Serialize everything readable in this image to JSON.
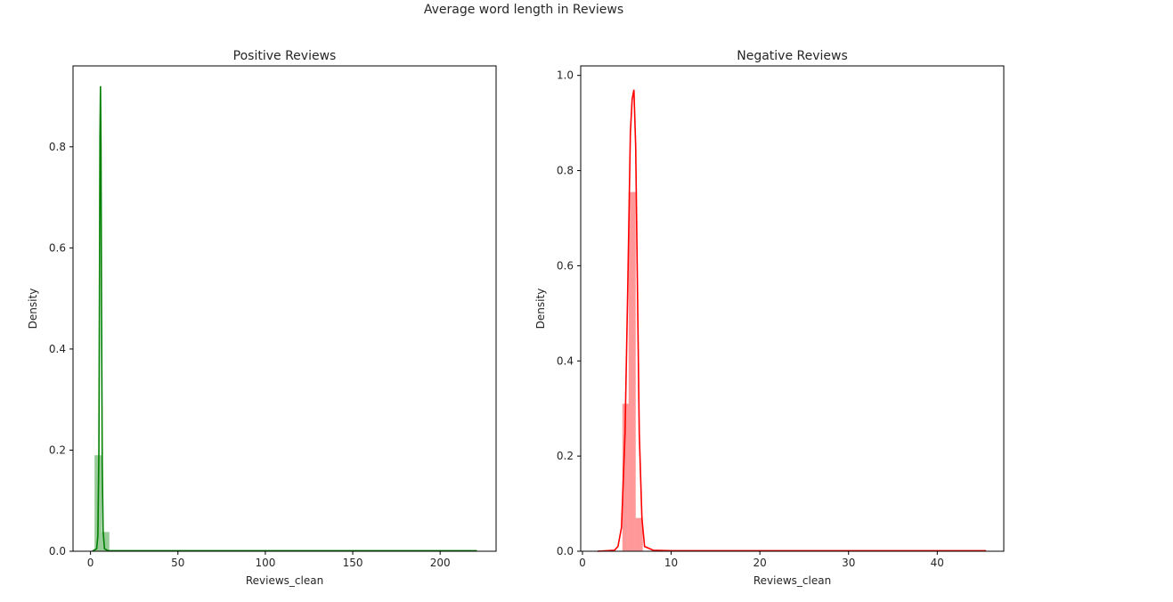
{
  "suptitle": "Average word length in Reviews",
  "chart_data": [
    {
      "type": "histogram+kde",
      "title": "Positive Reviews",
      "xlabel": "Reviews_clean",
      "ylabel": "Density",
      "xlim": [
        -10,
        232
      ],
      "ylim": [
        0,
        0.96
      ],
      "xticks": [
        0,
        50,
        100,
        150,
        200
      ],
      "yticks": [
        0.0,
        0.2,
        0.4,
        0.6,
        0.8
      ],
      "tick_decimals": 1,
      "color": "#008000",
      "bar_alpha": 0.4,
      "bins": [
        {
          "x0": 2.3,
          "x1": 6.5,
          "density": 0.19
        },
        {
          "x0": 6.5,
          "x1": 10.8,
          "density": 0.038
        },
        {
          "x0": 10.8,
          "x1": 221,
          "density": 0.0
        }
      ],
      "kde": {
        "points": [
          [
            1,
            0
          ],
          [
            3.5,
            0.005
          ],
          [
            4.2,
            0.03
          ],
          [
            4.8,
            0.2
          ],
          [
            5.1,
            0.5
          ],
          [
            5.4,
            0.82
          ],
          [
            5.7,
            0.92
          ],
          [
            6.0,
            0.8
          ],
          [
            6.3,
            0.48
          ],
          [
            6.7,
            0.18
          ],
          [
            7.2,
            0.04
          ],
          [
            8,
            0.005
          ],
          [
            10,
            0.001
          ],
          [
            50,
            0.001
          ],
          [
            221,
            0.001
          ]
        ]
      }
    },
    {
      "type": "histogram+kde",
      "title": "Negative Reviews",
      "xlabel": "Reviews_clean",
      "ylabel": "Density",
      "xlim": [
        -0.2,
        47.5
      ],
      "ylim": [
        0,
        1.02
      ],
      "xticks": [
        0,
        10,
        20,
        30,
        40
      ],
      "yticks": [
        0.0,
        0.2,
        0.4,
        0.6,
        0.8,
        1.0
      ],
      "tick_decimals": 1,
      "color": "#ff0000",
      "bar_alpha": 0.4,
      "bins": [
        {
          "x0": 4.5,
          "x1": 5.2,
          "density": 0.31
        },
        {
          "x0": 5.2,
          "x1": 6.0,
          "density": 0.755
        },
        {
          "x0": 6.0,
          "x1": 6.8,
          "density": 0.07
        },
        {
          "x0": 6.8,
          "x1": 45.5,
          "density": 0.0
        }
      ],
      "kde": {
        "points": [
          [
            1.7,
            0
          ],
          [
            3.6,
            0.002
          ],
          [
            4.0,
            0.01
          ],
          [
            4.4,
            0.05
          ],
          [
            4.8,
            0.25
          ],
          [
            5.1,
            0.55
          ],
          [
            5.4,
            0.88
          ],
          [
            5.6,
            0.95
          ],
          [
            5.8,
            0.97
          ],
          [
            6.0,
            0.85
          ],
          [
            6.2,
            0.55
          ],
          [
            6.4,
            0.25
          ],
          [
            6.7,
            0.07
          ],
          [
            7.0,
            0.01
          ],
          [
            8,
            0.002
          ],
          [
            10,
            0.001
          ],
          [
            45.5,
            0.001
          ]
        ]
      }
    }
  ]
}
